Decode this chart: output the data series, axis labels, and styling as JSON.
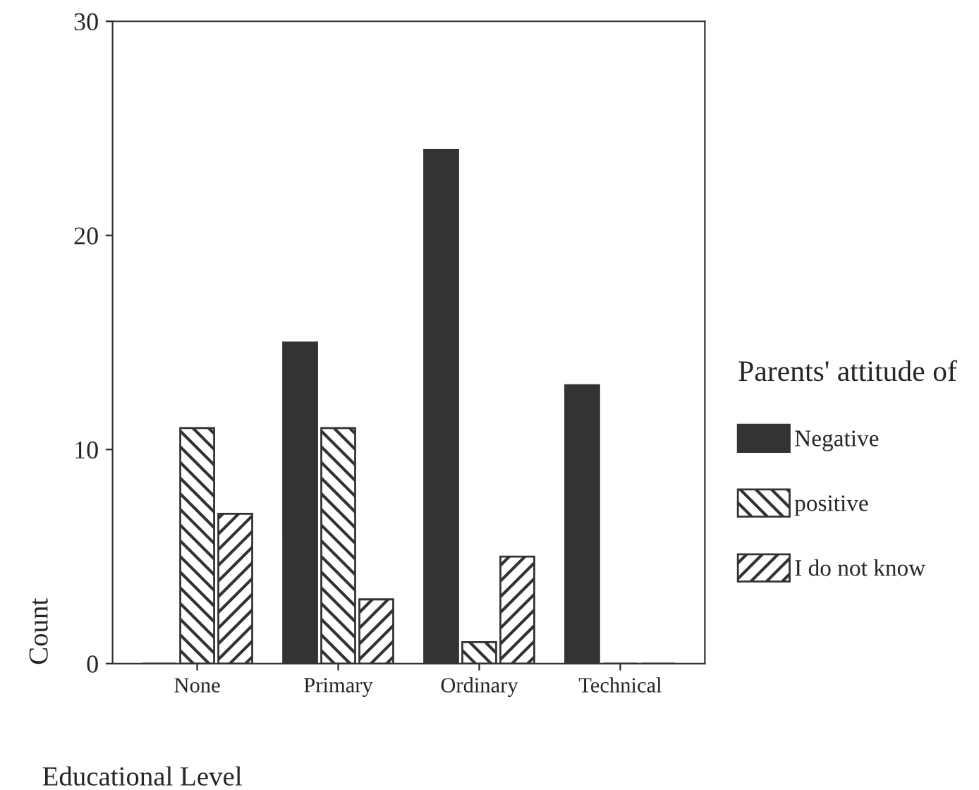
{
  "chart_data": {
    "type": "bar",
    "xlabel": "Educational Level",
    "ylabel": "Count",
    "legend_title": "Parents' attitude of",
    "categories": [
      "None",
      "Primary",
      "Ordinary",
      "Technical"
    ],
    "series": [
      {
        "name": "Negative",
        "color": "#333333",
        "values": [
          0,
          15,
          24,
          13
        ]
      },
      {
        "name": "positive",
        "color": "#333333",
        "values": [
          11,
          11,
          1,
          0
        ]
      },
      {
        "name": "I do not know",
        "color": "#333333",
        "values": [
          7,
          3,
          5,
          0
        ]
      }
    ],
    "ylim": [
      0,
      30
    ],
    "yticks": [
      0,
      10,
      20,
      30
    ],
    "grid": false,
    "legend": "right"
  }
}
